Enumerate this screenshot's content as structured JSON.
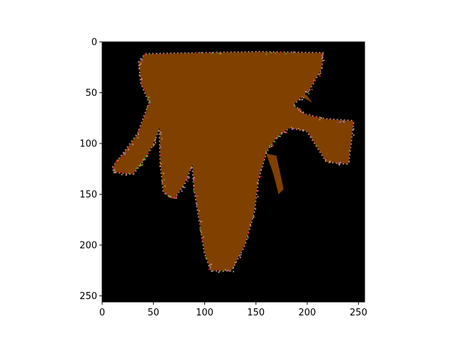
{
  "chart_data": {
    "type": "heatmap",
    "title": "",
    "xlabel": "",
    "ylabel": "",
    "xlim": [
      0,
      256
    ],
    "ylim": [
      256,
      0
    ],
    "y_inverted": true,
    "x_ticks": [
      0,
      50,
      100,
      150,
      200,
      250
    ],
    "y_ticks": [
      0,
      50,
      100,
      150,
      200,
      250
    ],
    "x_tick_labels": [
      "0",
      "50",
      "100",
      "150",
      "200",
      "250"
    ],
    "y_tick_labels": [
      "0",
      "50",
      "100",
      "150",
      "200",
      "250"
    ],
    "grid": false,
    "legend": "none",
    "image_description": "segmentation mask of a single brown object on a black background",
    "colors": {
      "background": "#000000",
      "region": "#7f4000",
      "edge_noise": [
        "#c98a86",
        "#5a9a20",
        "#d08a1a",
        "#b03060",
        "#8a8aa0",
        "#cc1030"
      ]
    },
    "region_outline": [
      [
        42,
        12
      ],
      [
        152,
        10
      ],
      [
        215,
        11
      ],
      [
        214,
        26
      ],
      [
        202,
        47
      ],
      [
        186,
        62
      ],
      [
        199,
        72
      ],
      [
        218,
        76
      ],
      [
        245,
        78
      ],
      [
        240,
        120
      ],
      [
        219,
        118
      ],
      [
        200,
        88
      ],
      [
        183,
        84
      ],
      [
        170,
        94
      ],
      [
        160,
        108
      ],
      [
        152,
        136
      ],
      [
        148,
        168
      ],
      [
        139,
        200
      ],
      [
        126,
        225
      ],
      [
        106,
        225
      ],
      [
        100,
        207
      ],
      [
        95,
        176
      ],
      [
        90,
        145
      ],
      [
        88,
        120
      ],
      [
        80,
        140
      ],
      [
        70,
        154
      ],
      [
        60,
        148
      ],
      [
        57,
        120
      ],
      [
        56,
        84
      ],
      [
        49,
        102
      ],
      [
        40,
        117
      ],
      [
        30,
        130
      ],
      [
        12,
        128
      ],
      [
        10,
        124
      ],
      [
        22,
        108
      ],
      [
        35,
        90
      ],
      [
        46,
        60
      ],
      [
        38,
        40
      ],
      [
        36,
        20
      ]
    ],
    "appendages": [
      {
        "name": "left-arm",
        "outline": [
          [
            200,
            53
          ],
          [
            193,
            50
          ],
          [
            190,
            51
          ],
          [
            205,
            60
          ]
        ]
      },
      {
        "name": "right-hanging-piece",
        "outline": [
          [
            160,
            110
          ],
          [
            170,
            112
          ],
          [
            177,
            145
          ],
          [
            172,
            150
          ],
          [
            167,
            130
          ]
        ]
      }
    ]
  }
}
